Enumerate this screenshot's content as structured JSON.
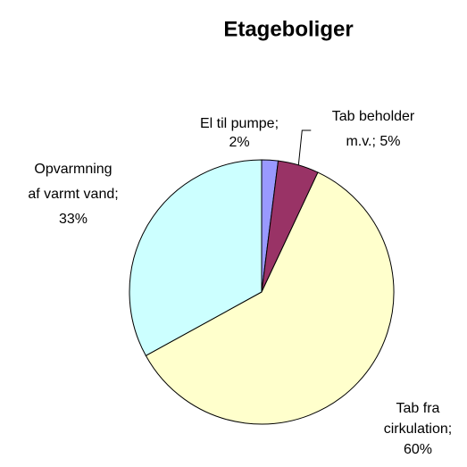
{
  "chart_data": {
    "type": "pie",
    "title": "Etageboliger",
    "values": [
      2,
      5,
      60,
      33
    ],
    "value_labels": [
      [
        "El til pumpe;",
        "2%"
      ],
      [
        "Tab beholder",
        "m.v.; 5%"
      ],
      [
        "Tab fra",
        "cirkulation;",
        "60%"
      ],
      [
        "Opvarmning",
        "af varmt vand;",
        "33%"
      ]
    ],
    "colors": [
      "#9999ff",
      "#993366",
      "#ffffcc",
      "#ccffff"
    ]
  }
}
